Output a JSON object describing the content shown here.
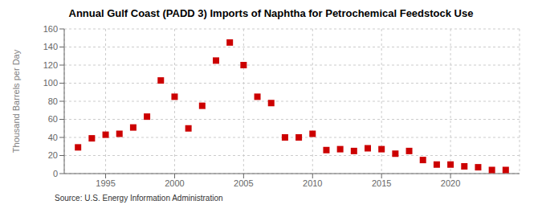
{
  "chart_data": {
    "type": "scatter",
    "title": "Annual Gulf Coast (PADD 3) Imports of Naphtha for Petrochemical Feedstock Use",
    "ylabel": "Thousand Barrels per Day",
    "annotations": [
      "Source: U.S. Energy Information Administration"
    ],
    "x": [
      1993,
      1994,
      1995,
      1996,
      1997,
      1998,
      1999,
      2000,
      2001,
      2002,
      2003,
      2004,
      2005,
      2006,
      2007,
      2008,
      2009,
      2010,
      2011,
      2012,
      2013,
      2014,
      2015,
      2016,
      2017,
      2018,
      2019,
      2020,
      2021,
      2022,
      2023,
      2024
    ],
    "values": [
      29,
      39,
      43,
      44,
      51,
      63,
      103,
      85,
      50,
      75,
      125,
      145,
      120,
      85,
      78,
      40,
      40,
      44,
      26,
      27,
      25,
      28,
      27,
      22,
      25,
      15,
      10,
      10,
      8,
      7,
      4,
      4
    ],
    "color": "#cc0000",
    "marker": "square",
    "xlim": [
      1992,
      2025
    ],
    "ylim": [
      0,
      160
    ],
    "xticks": [
      1995,
      2000,
      2005,
      2010,
      2015,
      2020
    ],
    "yticks": [
      0,
      20,
      40,
      60,
      80,
      100,
      120,
      140,
      160
    ],
    "grid": true
  }
}
